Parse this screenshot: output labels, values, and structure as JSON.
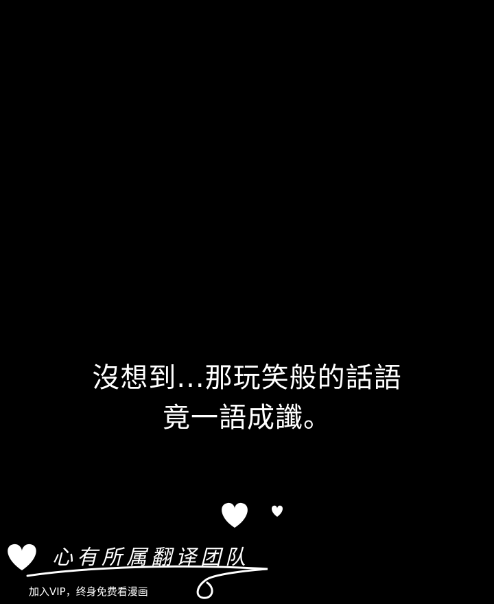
{
  "caption": {
    "line1": "沒想到...那玩笑般的話語",
    "line2": "竟一語成讖。"
  },
  "watermark": {
    "title": "心有所属翻译团队",
    "subtitle": "加入VIP，终身免费看漫画"
  },
  "colors": {
    "background": "#000000",
    "text": "#ffffff"
  },
  "icons": [
    "heart-icon",
    "swirl-line"
  ]
}
